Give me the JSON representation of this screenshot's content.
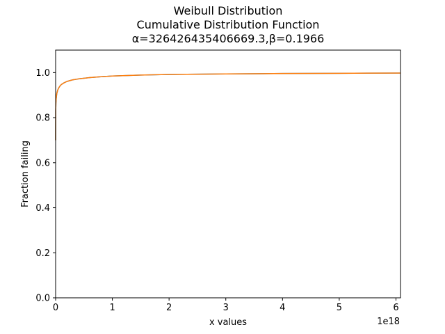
{
  "chart_data": {
    "type": "line",
    "title": "Weibull Distribution",
    "subtitle": "Cumulative Distribution Function",
    "params_label": "α=326426435406669.3,β=0.1966",
    "xlabel": "x values",
    "ylabel": "Fraction failing",
    "x_offset_label": "1e18",
    "xlim": [
      0,
      6.08
    ],
    "ylim": [
      0.0,
      1.1
    ],
    "x_ticks": [
      0,
      1,
      2,
      3,
      4,
      5,
      6
    ],
    "x_tick_labels": [
      "0",
      "1",
      "2",
      "3",
      "4",
      "5",
      "6"
    ],
    "y_ticks": [
      0.0,
      0.2,
      0.4,
      0.6,
      0.8,
      1.0
    ],
    "y_tick_labels": [
      "0.0",
      "0.2",
      "0.4",
      "0.6",
      "0.8",
      "1.0"
    ],
    "grid": false,
    "series": [
      {
        "color": "#1f77b4",
        "x": [
          0,
          0.002,
          0.005,
          0.01,
          0.02,
          0.035,
          0.05,
          0.075,
          0.1,
          0.15,
          0.2,
          0.3,
          0.4,
          0.6,
          0.8,
          1.0,
          1.5,
          2.0,
          2.5,
          3.0,
          3.5,
          4.0,
          4.5,
          5.0,
          5.5,
          6.08
        ],
        "y": [
          0.7,
          0.832,
          0.864,
          0.885,
          0.906,
          0.921,
          0.93,
          0.94,
          0.947,
          0.955,
          0.961,
          0.968,
          0.972,
          0.978,
          0.982,
          0.985,
          0.989,
          0.992,
          0.993,
          0.994,
          0.995,
          0.996,
          0.9965,
          0.997,
          0.9975,
          0.998
        ]
      },
      {
        "color": "#ff7f0e",
        "x": [
          0,
          0.002,
          0.005,
          0.01,
          0.02,
          0.035,
          0.05,
          0.075,
          0.1,
          0.15,
          0.2,
          0.3,
          0.4,
          0.6,
          0.8,
          1.0,
          1.5,
          2.0,
          2.5,
          3.0,
          3.5,
          4.0,
          4.5,
          5.0,
          5.5,
          6.08
        ],
        "y": [
          0.7,
          0.832,
          0.864,
          0.885,
          0.906,
          0.921,
          0.93,
          0.94,
          0.947,
          0.955,
          0.961,
          0.968,
          0.972,
          0.978,
          0.982,
          0.985,
          0.989,
          0.992,
          0.993,
          0.994,
          0.995,
          0.996,
          0.9965,
          0.997,
          0.9975,
          0.998
        ]
      }
    ]
  }
}
